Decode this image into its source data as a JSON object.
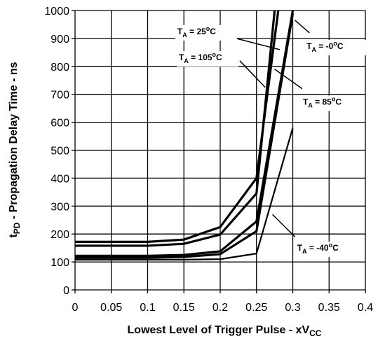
{
  "chart_data": {
    "type": "line",
    "xlabel": "Lowest Level of Trigger Pulse - xV",
    "xlabel_sub": "CC",
    "ylabel": "t",
    "ylabel_sub": "PD",
    "ylabel_rest": " - Propagation Delay Time - ns",
    "xlim": [
      0,
      0.4
    ],
    "ylim": [
      0,
      1000
    ],
    "x_ticks": [
      0,
      0.05,
      0.1,
      0.15,
      0.2,
      0.25,
      0.3,
      0.35,
      0.4
    ],
    "x_tick_labels": [
      "0",
      "0.05",
      "0.1",
      "0.15",
      "0.2",
      "0.25",
      "0.3",
      "0.35",
      "0.4"
    ],
    "y_ticks": [
      0,
      100,
      200,
      300,
      400,
      500,
      600,
      700,
      800,
      900,
      1000
    ],
    "y_tick_labels": [
      "0",
      "100",
      "200",
      "300",
      "400",
      "500",
      "600",
      "700",
      "800",
      "900",
      "1000"
    ],
    "grid": true,
    "series": [
      {
        "key": "t25",
        "x": [
          0,
          0.1,
          0.15,
          0.2,
          0.25,
          0.28
        ],
        "y": [
          172,
          172,
          180,
          225,
          400,
          1000
        ],
        "thin": false
      },
      {
        "key": "t105",
        "x": [
          0,
          0.1,
          0.15,
          0.2,
          0.25,
          0.275
        ],
        "y": [
          158,
          158,
          165,
          198,
          345,
          1000
        ],
        "thin": false
      },
      {
        "key": "t0",
        "x": [
          0,
          0.1,
          0.15,
          0.2,
          0.25,
          0.3
        ],
        "y": [
          122,
          122,
          125,
          138,
          245,
          1000
        ],
        "thin": false
      },
      {
        "key": "t85",
        "x": [
          0,
          0.1,
          0.15,
          0.2,
          0.25,
          0.3
        ],
        "y": [
          115,
          115,
          118,
          128,
          210,
          990
        ],
        "thin": false
      },
      {
        "key": "tm40",
        "x": [
          0,
          0.1,
          0.15,
          0.2,
          0.25,
          0.3
        ],
        "y": [
          108,
          108,
          108,
          110,
          130,
          580
        ],
        "thin": true
      }
    ],
    "annotations": [
      {
        "key": "t25",
        "label_main": "T",
        "label_sub": "A",
        "label_rest": " = 25",
        "label_sup": "o",
        "label_unit": "C",
        "tx": 0.141,
        "ty": 915,
        "ax1": 0.222,
        "ay1": 900,
        "ax2": 0.282,
        "ay2": 860
      },
      {
        "key": "t105",
        "label_main": "T",
        "label_sub": "A",
        "label_rest": " = 105",
        "label_sup": "o",
        "label_unit": "C",
        "tx": 0.143,
        "ty": 822,
        "ax1": 0.227,
        "ay1": 820,
        "ax2": 0.262,
        "ay2": 725
      },
      {
        "key": "t0",
        "label_main": "T",
        "label_sub": "A",
        "label_rest": " = -0",
        "label_sup": "o",
        "label_unit": "C",
        "tx": 0.319,
        "ty": 862,
        "ax1": 0.323,
        "ay1": 920,
        "ax2": 0.303,
        "ay2": 965
      },
      {
        "key": "t85",
        "label_main": "T",
        "label_sub": "A",
        "label_rest": " = 85",
        "label_sup": "o",
        "label_unit": "C",
        "tx": 0.314,
        "ty": 663,
        "ax1": 0.313,
        "ay1": 720,
        "ax2": 0.275,
        "ay2": 790
      },
      {
        "key": "tm40",
        "label_main": "T",
        "label_sub": "A",
        "label_rest": " = -40",
        "label_sup": "o",
        "label_unit": "C",
        "tx": 0.306,
        "ty": 140,
        "ax1": 0.303,
        "ay1": 190,
        "ax2": 0.272,
        "ay2": 270
      }
    ]
  }
}
